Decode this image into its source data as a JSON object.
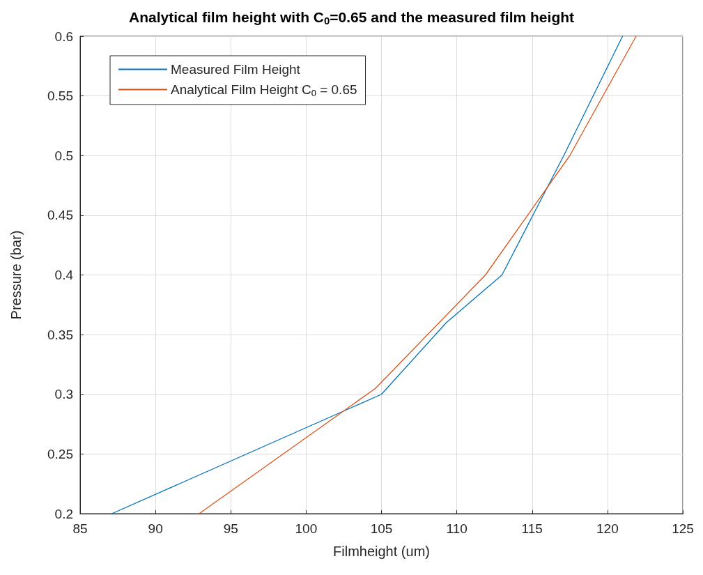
{
  "chart_data": {
    "type": "line",
    "title": "Analytical film height with C$_{0}$=0.65 and the measured film height",
    "xlabel": "Filmheight (um)",
    "ylabel": "Pressure (bar)",
    "series": [
      {
        "name": "Measured Film Height",
        "color": "#0072bd",
        "x": [
          87.1,
          105,
          109.3,
          113,
          117.1,
          121
        ],
        "values": [
          0.2,
          0.3,
          0.36,
          0.4,
          0.5,
          0.6
        ]
      },
      {
        "name": "Analytical Film Height C$_{0}$ = 0.65",
        "color": "#d95319",
        "x": [
          92.9,
          104.6,
          111.9,
          117.5,
          121.9
        ],
        "values": [
          0.2,
          0.305,
          0.4,
          0.5,
          0.6
        ]
      }
    ],
    "xlim": [
      85,
      125
    ],
    "xticks": [
      85,
      90,
      95,
      100,
      105,
      110,
      115,
      120,
      125
    ],
    "ylim": [
      0.2,
      0.6
    ],
    "yticks": [
      0.2,
      0.25,
      0.3,
      0.35,
      0.4,
      0.45,
      0.5,
      0.55,
      0.6
    ],
    "grid": true,
    "legend": "top left",
    "marker": "none",
    "line_style": "solid"
  }
}
